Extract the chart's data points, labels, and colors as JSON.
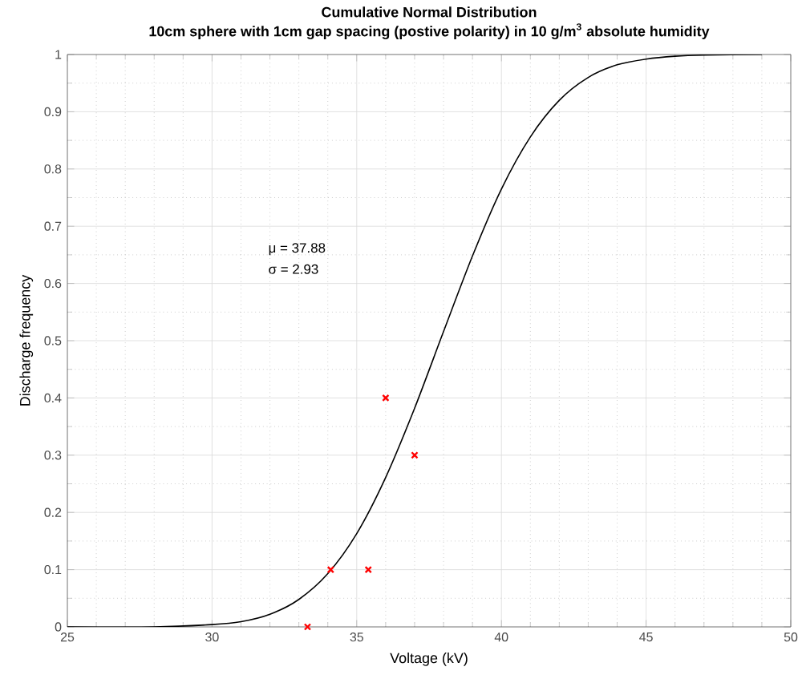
{
  "chart_data": {
    "type": "line",
    "title": "Cumulative Normal Distribution",
    "subtitle": "10cm sphere with 1cm gap spacing (postive polarity) in 10 g/m$^{3}$ absolute humidity",
    "xlabel": "Voltage (kV)",
    "ylabel": "Discharge frequency",
    "xlim": [
      25,
      50
    ],
    "ylim": [
      0,
      1
    ],
    "xticks": [
      25,
      30,
      35,
      40,
      45,
      50
    ],
    "yticks": [
      0,
      0.1,
      0.2,
      0.3,
      0.4,
      0.5,
      0.6,
      0.7,
      0.8,
      0.9,
      1
    ],
    "grid": true,
    "series": [
      {
        "color": "#000000",
        "marker": "none",
        "line_style": "solid",
        "x": [
          25,
          28,
          30,
          31,
          32,
          33,
          34,
          35,
          36,
          37,
          38,
          39,
          40,
          41,
          42,
          43,
          44,
          45,
          46,
          47,
          49
        ],
        "values": [
          0,
          0,
          0.004,
          0.009,
          0.022,
          0.048,
          0.093,
          0.163,
          0.261,
          0.382,
          0.516,
          0.648,
          0.765,
          0.856,
          0.92,
          0.96,
          0.982,
          0.992,
          0.997,
          0.999,
          1
        ]
      },
      {
        "type": "scatter",
        "color": "#ff0000",
        "marker": "cross",
        "x": [
          33.3,
          34.1,
          35.4,
          36.0,
          37.0
        ],
        "values": [
          0,
          0.1,
          0.1,
          0.4,
          0.3
        ]
      }
    ],
    "annotations": [
      "μ = 37.88",
      "σ = 2.93"
    ]
  }
}
